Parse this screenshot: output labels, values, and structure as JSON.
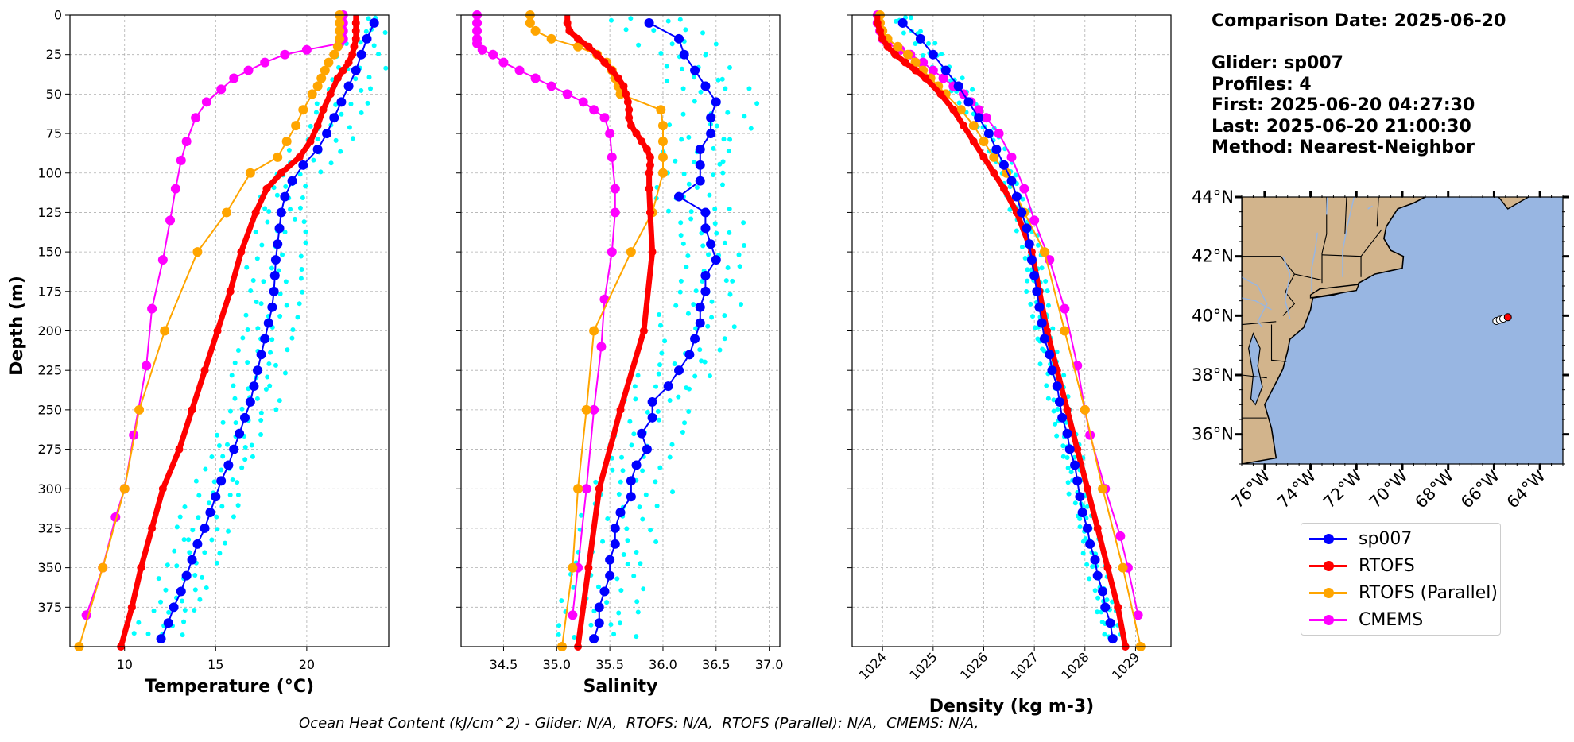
{
  "info": {
    "comparison_date": "Comparison Date: 2025-06-20",
    "glider": "Glider: sp007",
    "profiles": "Profiles: 4",
    "first": "First: 2025-06-20 04:27:30",
    "last": "Last: 2025-06-20 21:00:30",
    "method": "Method: Nearest-Neighbor"
  },
  "footer": "Ocean Heat Content (kJ/cm^2) - Glider: N/A,  RTOFS: N/A,  RTOFS (Parallel): N/A,  CMEMS: N/A,",
  "colors": {
    "sp007": "#0000ff",
    "rtofs": "#ff0000",
    "rtofs_parallel": "#ffa500",
    "cmems": "#ff00ff",
    "raw": "#00ffff",
    "land": "#d2b48c",
    "ocean": "#98b6e2"
  },
  "legend": [
    {
      "label": "sp007",
      "color": "#0000ff"
    },
    {
      "label": "RTOFS",
      "color": "#ff0000"
    },
    {
      "label": "RTOFS (Parallel)",
      "color": "#ffa500"
    },
    {
      "label": "CMEMS",
      "color": "#ff00ff"
    }
  ],
  "chart_data": [
    {
      "type": "line",
      "xlabel": "Temperature (°C)",
      "ylabel": "Depth (m)",
      "xlim": [
        7.0,
        24.5
      ],
      "ylim": [
        400,
        0
      ],
      "xticks": [
        10,
        15,
        20
      ],
      "yticks": [
        0,
        25,
        50,
        75,
        100,
        125,
        150,
        175,
        200,
        225,
        250,
        275,
        300,
        325,
        350,
        375
      ],
      "grid": true,
      "series": [
        {
          "name": "sp007",
          "depth": [
            5,
            15,
            25,
            35,
            45,
            55,
            65,
            75,
            85,
            95,
            105,
            115,
            125,
            135,
            145,
            155,
            165,
            175,
            185,
            195,
            205,
            215,
            225,
            235,
            245,
            255,
            265,
            275,
            285,
            295,
            305,
            315,
            325,
            335,
            345,
            355,
            365,
            375,
            385,
            395
          ],
          "values": [
            23.7,
            23.3,
            23.0,
            22.7,
            22.3,
            21.9,
            21.5,
            21.1,
            20.6,
            19.8,
            19.2,
            18.8,
            18.6,
            18.5,
            18.4,
            18.3,
            18.25,
            18.2,
            18.1,
            17.9,
            17.7,
            17.5,
            17.3,
            17.1,
            16.9,
            16.6,
            16.3,
            16.0,
            15.7,
            15.3,
            15.0,
            14.7,
            14.4,
            14.0,
            13.7,
            13.4,
            13.1,
            12.7,
            12.4,
            12.0
          ]
        },
        {
          "name": "RTOFS",
          "depth": [
            0,
            5,
            10,
            15,
            20,
            25,
            30,
            35,
            40,
            50,
            60,
            70,
            80,
            90,
            100,
            110,
            125,
            150,
            175,
            200,
            225,
            250,
            275,
            300,
            325,
            350,
            375,
            400
          ],
          "values": [
            22.7,
            22.7,
            22.7,
            22.7,
            22.6,
            22.5,
            22.3,
            22.0,
            21.7,
            21.3,
            20.9,
            20.6,
            20.2,
            19.6,
            18.6,
            17.8,
            17.2,
            16.4,
            15.8,
            15.1,
            14.4,
            13.7,
            13.0,
            12.1,
            11.5,
            10.9,
            10.4,
            9.8
          ]
        },
        {
          "name": "RTOFS (Parallel)",
          "depth": [
            0,
            5,
            10,
            15,
            20,
            25,
            30,
            35,
            40,
            45,
            50,
            60,
            70,
            80,
            90,
            100,
            125,
            150,
            200,
            250,
            300,
            350,
            400
          ],
          "values": [
            21.8,
            21.8,
            21.8,
            21.8,
            21.7,
            21.5,
            21.2,
            21.0,
            20.8,
            20.6,
            20.3,
            19.8,
            19.4,
            18.9,
            18.4,
            16.9,
            15.6,
            14.0,
            12.2,
            10.8,
            10.0,
            8.8,
            7.5
          ]
        },
        {
          "name": "CMEMS",
          "depth": [
            0,
            5,
            10,
            15,
            18,
            22,
            25,
            30,
            35,
            40,
            47,
            55,
            65,
            80,
            92,
            110,
            130,
            155,
            186,
            222,
            266,
            300,
            318,
            350,
            380
          ],
          "values": [
            22.0,
            22.0,
            22.0,
            22.0,
            21.8,
            20.0,
            18.8,
            17.7,
            16.8,
            16.0,
            15.3,
            14.5,
            13.9,
            13.4,
            13.1,
            12.8,
            12.5,
            12.1,
            11.5,
            11.2,
            10.5,
            10.0,
            9.5,
            8.8,
            7.9
          ]
        }
      ]
    },
    {
      "type": "line",
      "xlabel": "Salinity",
      "ylabel": "",
      "xlim": [
        34.1,
        37.1
      ],
      "ylim": [
        400,
        0
      ],
      "xticks": [
        34.5,
        35.0,
        35.5,
        36.0,
        36.5,
        37.0
      ],
      "grid": true,
      "series": [
        {
          "name": "sp007",
          "depth": [
            5,
            15,
            25,
            35,
            45,
            55,
            65,
            75,
            85,
            95,
            105,
            115,
            125,
            135,
            145,
            155,
            165,
            175,
            185,
            195,
            205,
            215,
            225,
            235,
            245,
            255,
            265,
            275,
            285,
            295,
            305,
            315,
            325,
            335,
            345,
            355,
            365,
            375,
            385,
            395
          ],
          "values": [
            35.87,
            36.15,
            36.2,
            36.3,
            36.4,
            36.5,
            36.45,
            36.45,
            36.35,
            36.35,
            36.35,
            36.15,
            36.4,
            36.4,
            36.45,
            36.5,
            36.4,
            36.4,
            36.35,
            36.35,
            36.3,
            36.25,
            36.15,
            36.05,
            35.9,
            35.9,
            35.8,
            35.85,
            35.75,
            35.7,
            35.7,
            35.6,
            35.55,
            35.55,
            35.5,
            35.5,
            35.45,
            35.4,
            35.4,
            35.35
          ]
        },
        {
          "name": "RTOFS",
          "depth": [
            0,
            5,
            10,
            15,
            20,
            25,
            30,
            35,
            40,
            45,
            50,
            55,
            60,
            65,
            70,
            75,
            80,
            85,
            90,
            95,
            100,
            110,
            125,
            150,
            200,
            250,
            300,
            350,
            400
          ],
          "values": [
            35.1,
            35.1,
            35.12,
            35.2,
            35.3,
            35.38,
            35.45,
            35.52,
            35.58,
            35.63,
            35.65,
            35.67,
            35.68,
            35.68,
            35.7,
            35.75,
            35.8,
            35.85,
            35.88,
            35.88,
            35.87,
            35.87,
            35.88,
            35.9,
            35.82,
            35.6,
            35.4,
            35.3,
            35.2
          ]
        },
        {
          "name": "RTOFS (Parallel)",
          "depth": [
            0,
            5,
            10,
            15,
            20,
            25,
            30,
            35,
            40,
            45,
            50,
            60,
            70,
            80,
            90,
            100,
            125,
            150,
            200,
            250,
            300,
            350,
            400
          ],
          "values": [
            34.75,
            34.75,
            34.8,
            34.95,
            35.2,
            35.38,
            35.47,
            35.52,
            35.55,
            35.58,
            35.6,
            35.98,
            36.0,
            36.0,
            36.0,
            36.0,
            35.9,
            35.7,
            35.35,
            35.28,
            35.2,
            35.15,
            35.05
          ]
        },
        {
          "name": "CMEMS",
          "depth": [
            0,
            5,
            10,
            15,
            18,
            22,
            25,
            30,
            35,
            40,
            45,
            50,
            55,
            60,
            65,
            75,
            90,
            110,
            125,
            150,
            180,
            210,
            250,
            300,
            350,
            380
          ],
          "values": [
            34.25,
            34.25,
            34.25,
            34.25,
            34.25,
            34.3,
            34.4,
            34.5,
            34.65,
            34.8,
            34.95,
            35.1,
            35.25,
            35.35,
            35.45,
            35.5,
            35.52,
            35.55,
            35.55,
            35.52,
            35.45,
            35.42,
            35.35,
            35.28,
            35.2,
            35.15
          ]
        }
      ]
    },
    {
      "type": "line",
      "xlabel": "Density (kg m-3)",
      "ylabel": "",
      "xlim": [
        1023.4,
        1029.7
      ],
      "ylim": [
        400,
        0
      ],
      "xticks": [
        1024,
        1025,
        1026,
        1027,
        1028,
        1029
      ],
      "grid": true,
      "series": [
        {
          "name": "sp007",
          "depth": [
            5,
            15,
            25,
            35,
            45,
            55,
            65,
            75,
            85,
            95,
            105,
            115,
            125,
            135,
            145,
            155,
            165,
            175,
            185,
            195,
            205,
            215,
            225,
            235,
            245,
            255,
            265,
            275,
            285,
            295,
            305,
            315,
            325,
            335,
            345,
            355,
            365,
            375,
            385,
            395
          ],
          "values": [
            1024.4,
            1024.75,
            1025.0,
            1025.25,
            1025.5,
            1025.7,
            1025.9,
            1026.1,
            1026.25,
            1026.4,
            1026.55,
            1026.65,
            1026.75,
            1026.85,
            1026.9,
            1026.95,
            1027.0,
            1027.05,
            1027.1,
            1027.15,
            1027.2,
            1027.3,
            1027.35,
            1027.45,
            1027.5,
            1027.55,
            1027.65,
            1027.7,
            1027.8,
            1027.85,
            1027.9,
            1027.95,
            1028.05,
            1028.1,
            1028.2,
            1028.25,
            1028.35,
            1028.4,
            1028.5,
            1028.55
          ]
        },
        {
          "name": "RTOFS",
          "depth": [
            0,
            5,
            10,
            15,
            20,
            25,
            30,
            35,
            40,
            50,
            60,
            70,
            80,
            90,
            100,
            110,
            125,
            150,
            175,
            200,
            225,
            250,
            275,
            300,
            325,
            350,
            375,
            400
          ],
          "values": [
            1023.9,
            1023.9,
            1023.95,
            1024.0,
            1024.1,
            1024.25,
            1024.45,
            1024.65,
            1024.85,
            1025.15,
            1025.4,
            1025.6,
            1025.8,
            1026.0,
            1026.2,
            1026.4,
            1026.65,
            1026.95,
            1027.1,
            1027.25,
            1027.45,
            1027.65,
            1027.85,
            1028.05,
            1028.25,
            1028.45,
            1028.65,
            1028.8
          ]
        },
        {
          "name": "RTOFS (Parallel)",
          "depth": [
            0,
            5,
            10,
            15,
            20,
            25,
            30,
            35,
            40,
            45,
            50,
            60,
            70,
            80,
            90,
            100,
            125,
            150,
            200,
            250,
            300,
            350,
            400
          ],
          "values": [
            1023.95,
            1023.95,
            1024.0,
            1024.1,
            1024.3,
            1024.5,
            1024.65,
            1024.8,
            1024.95,
            1025.1,
            1025.25,
            1025.55,
            1025.8,
            1026.0,
            1026.2,
            1026.45,
            1026.8,
            1027.2,
            1027.6,
            1028.0,
            1028.35,
            1028.75,
            1029.1
          ]
        },
        {
          "name": "CMEMS",
          "depth": [
            0,
            5,
            10,
            15,
            18,
            22,
            25,
            30,
            35,
            40,
            45,
            50,
            55,
            60,
            65,
            75,
            90,
            110,
            130,
            155,
            186,
            222,
            250,
            266,
            300,
            330,
            350,
            380
          ],
          "values": [
            1023.9,
            1023.9,
            1023.95,
            1024.0,
            1024.1,
            1024.35,
            1024.55,
            1024.8,
            1025.0,
            1025.2,
            1025.4,
            1025.6,
            1025.75,
            1025.9,
            1026.05,
            1026.3,
            1026.55,
            1026.8,
            1027.0,
            1027.3,
            1027.6,
            1027.85,
            1028.0,
            1028.1,
            1028.4,
            1028.7,
            1028.85,
            1029.05
          ]
        }
      ]
    },
    {
      "type": "map",
      "lon_ticks": [
        "76°W",
        "74°W",
        "72°W",
        "70°W",
        "68°W",
        "66°W",
        "64°W"
      ],
      "lat_ticks": [
        "44°N",
        "42°N",
        "40°N",
        "38°N",
        "36°N"
      ],
      "lon_values": [
        -76,
        -74,
        -72,
        -70,
        -68,
        -66,
        -64
      ],
      "lat_values": [
        44,
        42,
        40,
        38,
        36
      ],
      "extent": {
        "lon": [
          -77,
          -63
        ],
        "lat": [
          35,
          44
        ]
      },
      "glider_points": [
        {
          "lon": -65.9,
          "lat": 39.82
        },
        {
          "lon": -65.75,
          "lat": 39.86
        },
        {
          "lon": -65.6,
          "lat": 39.9
        },
        {
          "lon": -65.4,
          "lat": 39.95
        }
      ]
    }
  ]
}
